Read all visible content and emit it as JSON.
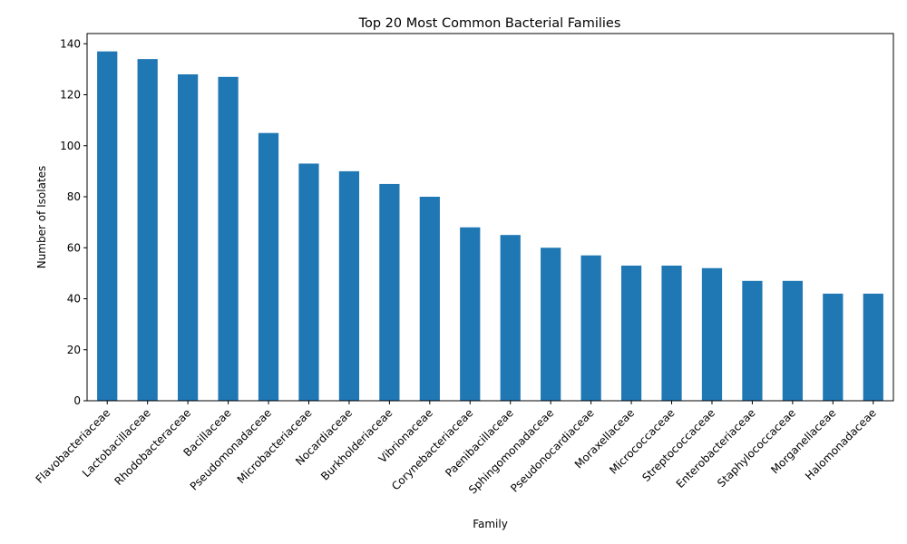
{
  "chart_data": {
    "type": "bar",
    "title": "Top 20 Most Common Bacterial Families",
    "xlabel": "Family",
    "ylabel": "Number of Isolates",
    "ylim": [
      0,
      144
    ],
    "yticks": [
      0,
      20,
      40,
      60,
      80,
      100,
      120,
      140
    ],
    "grid": false,
    "bar_color": "#1f77b4",
    "categories": [
      "Flavobacteriaceae",
      "Lactobacillaceae",
      "Rhodobacteraceae",
      "Bacillaceae",
      "Pseudomonadaceae",
      "Microbacteriaceae",
      "Nocardiaceae",
      "Burkholderiaceae",
      "Vibrionaceae",
      "Corynebacteriaceae",
      "Paenibacillaceae",
      "Sphingomonadaceae",
      "Pseudonocardiaceae",
      "Moraxellaceae",
      "Micrococcaceae",
      "Streptococcaceae",
      "Enterobacteriaceae",
      "Staphylococcaceae",
      "Morganellaceae",
      "Halomonadaceae"
    ],
    "values": [
      137,
      134,
      128,
      127,
      105,
      93,
      90,
      85,
      80,
      68,
      65,
      60,
      57,
      53,
      53,
      52,
      47,
      47,
      42,
      42
    ]
  }
}
